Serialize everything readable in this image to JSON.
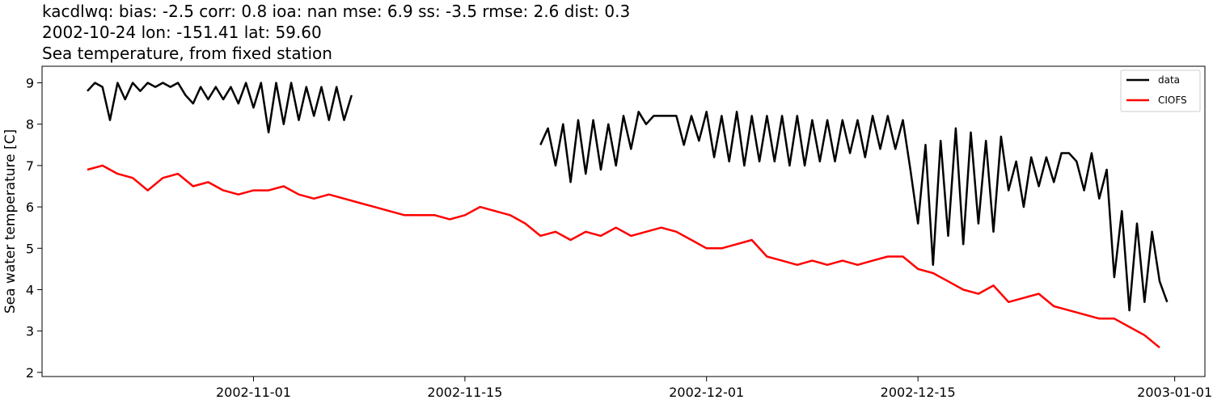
{
  "chart_data": {
    "type": "line",
    "title_lines": [
      "kacdlwq: bias: -2.5  corr: 0.8  ioa: nan  mse: 6.9  ss: -3.5  rmse: 2.6  dist: 0.3",
      "2002-10-24 lon: -151.41 lat: 59.60",
      "Sea temperature, from fixed station"
    ],
    "xlabel": "",
    "ylabel": "Sea water temperature [C]",
    "xlim": [
      "2002-10-18",
      "2003-01-03"
    ],
    "ylim": [
      1.9,
      9.4
    ],
    "x_ticks": [
      "2002-11-01",
      "2002-11-15",
      "2002-12-01",
      "2002-12-15",
      "2003-01-01"
    ],
    "y_ticks": [
      2,
      3,
      4,
      5,
      6,
      7,
      8,
      9
    ],
    "grid": false,
    "legend": "top-right",
    "series": [
      {
        "name": "data",
        "color": "#000000",
        "segments": [
          {
            "x": [
              "2002-10-21",
              "2002-10-21T12:00",
              "2002-10-22",
              "2002-10-22T12:00",
              "2002-10-23",
              "2002-10-23T12:00",
              "2002-10-24",
              "2002-10-24T12:00",
              "2002-10-25",
              "2002-10-25T12:00",
              "2002-10-26",
              "2002-10-26T12:00",
              "2002-10-27",
              "2002-10-27T12:00",
              "2002-10-28",
              "2002-10-28T12:00",
              "2002-10-29",
              "2002-10-29T12:00",
              "2002-10-30",
              "2002-10-30T12:00",
              "2002-10-31",
              "2002-10-31T12:00",
              "2002-11-01",
              "2002-11-01T12:00",
              "2002-11-02",
              "2002-11-02T12:00",
              "2002-11-03",
              "2002-11-03T12:00",
              "2002-11-04",
              "2002-11-04T12:00",
              "2002-11-05",
              "2002-11-05T12:00",
              "2002-11-06",
              "2002-11-06T12:00",
              "2002-11-07",
              "2002-11-07T12:00"
            ],
            "y": [
              8.8,
              9.0,
              8.9,
              8.1,
              9.0,
              8.6,
              9.0,
              8.8,
              9.0,
              8.9,
              9.0,
              8.9,
              9.0,
              8.7,
              8.5,
              8.9,
              8.6,
              8.9,
              8.6,
              8.9,
              8.5,
              9.0,
              8.4,
              9.0,
              7.8,
              9.0,
              8.0,
              9.0,
              8.1,
              8.9,
              8.2,
              8.9,
              8.1,
              8.9,
              8.1,
              8.7
            ]
          },
          {
            "x": [
              "2002-11-20",
              "2002-11-20T12:00",
              "2002-11-21",
              "2002-11-21T12:00",
              "2002-11-22",
              "2002-11-22T12:00",
              "2002-11-23",
              "2002-11-23T12:00",
              "2002-11-24",
              "2002-11-24T12:00",
              "2002-11-25",
              "2002-11-25T12:00",
              "2002-11-26",
              "2002-11-26T12:00",
              "2002-11-27",
              "2002-11-27T12:00",
              "2002-11-28",
              "2002-11-28T12:00",
              "2002-11-29",
              "2002-11-29T12:00",
              "2002-11-30",
              "2002-11-30T12:00",
              "2002-12-01",
              "2002-12-01T12:00",
              "2002-12-02",
              "2002-12-02T12:00",
              "2002-12-03",
              "2002-12-03T12:00",
              "2002-12-04",
              "2002-12-04T12:00",
              "2002-12-05",
              "2002-12-05T12:00",
              "2002-12-06",
              "2002-12-06T12:00",
              "2002-12-07",
              "2002-12-07T12:00",
              "2002-12-08",
              "2002-12-08T12:00",
              "2002-12-09",
              "2002-12-09T12:00",
              "2002-12-10",
              "2002-12-10T12:00",
              "2002-12-11",
              "2002-12-11T12:00",
              "2002-12-12",
              "2002-12-12T12:00",
              "2002-12-13",
              "2002-12-13T12:00",
              "2002-12-14",
              "2002-12-14T12:00",
              "2002-12-15",
              "2002-12-15T12:00",
              "2002-12-16",
              "2002-12-16T12:00",
              "2002-12-17",
              "2002-12-17T12:00",
              "2002-12-18",
              "2002-12-18T12:00",
              "2002-12-19",
              "2002-12-19T12:00",
              "2002-12-20",
              "2002-12-20T12:00",
              "2002-12-21",
              "2002-12-21T12:00",
              "2002-12-22",
              "2002-12-22T12:00",
              "2002-12-23",
              "2002-12-23T12:00",
              "2002-12-24",
              "2002-12-24T12:00",
              "2002-12-25",
              "2002-12-25T12:00",
              "2002-12-26",
              "2002-12-26T12:00",
              "2002-12-27",
              "2002-12-27T12:00",
              "2002-12-28",
              "2002-12-28T12:00",
              "2002-12-29",
              "2002-12-29T12:00",
              "2002-12-30",
              "2002-12-30T12:00",
              "2002-12-31",
              "2002-12-31T12:00"
            ],
            "y": [
              7.5,
              7.9,
              7.0,
              8.0,
              6.6,
              8.1,
              6.8,
              8.1,
              6.9,
              8.0,
              7.0,
              8.2,
              7.4,
              8.3,
              8.0,
              8.2,
              8.2,
              8.2,
              8.2,
              7.5,
              8.2,
              7.6,
              8.3,
              7.2,
              8.2,
              7.1,
              8.3,
              7.0,
              8.2,
              7.1,
              8.2,
              7.1,
              8.2,
              7.0,
              8.2,
              7.0,
              8.1,
              7.1,
              8.1,
              7.1,
              8.1,
              7.3,
              8.1,
              7.2,
              8.2,
              7.4,
              8.2,
              7.4,
              8.1,
              6.9,
              5.6,
              7.5,
              4.6,
              7.6,
              5.3,
              7.9,
              5.1,
              7.8,
              5.6,
              7.6,
              5.4,
              7.7,
              6.4,
              7.1,
              6.0,
              7.2,
              6.5,
              7.2,
              6.6,
              7.3,
              7.3,
              7.1,
              6.4,
              7.3,
              6.2,
              6.9,
              4.3,
              5.9,
              3.5,
              5.6,
              3.7,
              5.4,
              4.2,
              3.7
            ]
          }
        ]
      },
      {
        "name": "CIOFS",
        "color": "#ff0000",
        "segments": [
          {
            "x": [
              "2002-10-21",
              "2002-10-22",
              "2002-10-23",
              "2002-10-24",
              "2002-10-25",
              "2002-10-26",
              "2002-10-27",
              "2002-10-28",
              "2002-10-29",
              "2002-10-30",
              "2002-10-31",
              "2002-11-01",
              "2002-11-02",
              "2002-11-03",
              "2002-11-04",
              "2002-11-05",
              "2002-11-06",
              "2002-11-07",
              "2002-11-08",
              "2002-11-09",
              "2002-11-10",
              "2002-11-11",
              "2002-11-12",
              "2002-11-13",
              "2002-11-14",
              "2002-11-15",
              "2002-11-16",
              "2002-11-17",
              "2002-11-18",
              "2002-11-19",
              "2002-11-20",
              "2002-11-21",
              "2002-11-22",
              "2002-11-23",
              "2002-11-24",
              "2002-11-25",
              "2002-11-26",
              "2002-11-27",
              "2002-11-28",
              "2002-11-29",
              "2002-11-30",
              "2002-12-01",
              "2002-12-02",
              "2002-12-03",
              "2002-12-04",
              "2002-12-05",
              "2002-12-06",
              "2002-12-07",
              "2002-12-08",
              "2002-12-09",
              "2002-12-10",
              "2002-12-11",
              "2002-12-12",
              "2002-12-13",
              "2002-12-14",
              "2002-12-15",
              "2002-12-16",
              "2002-12-17",
              "2002-12-18",
              "2002-12-19",
              "2002-12-20",
              "2002-12-21",
              "2002-12-22",
              "2002-12-23",
              "2002-12-24",
              "2002-12-25",
              "2002-12-26",
              "2002-12-27",
              "2002-12-28",
              "2002-12-29",
              "2002-12-30",
              "2002-12-31"
            ],
            "y": [
              6.9,
              7.0,
              6.8,
              6.7,
              6.4,
              6.7,
              6.8,
              6.5,
              6.6,
              6.4,
              6.3,
              6.4,
              6.4,
              6.5,
              6.3,
              6.2,
              6.3,
              6.2,
              6.1,
              6.0,
              5.9,
              5.8,
              5.8,
              5.8,
              5.7,
              5.8,
              6.0,
              5.9,
              5.8,
              5.6,
              5.3,
              5.4,
              5.2,
              5.4,
              5.3,
              5.5,
              5.3,
              5.4,
              5.5,
              5.4,
              5.2,
              5.0,
              5.0,
              5.1,
              5.2,
              4.8,
              4.7,
              4.6,
              4.7,
              4.6,
              4.7,
              4.6,
              4.7,
              4.8,
              4.8,
              4.5,
              4.4,
              4.2,
              4.0,
              3.9,
              4.1,
              3.7,
              3.8,
              3.9,
              3.6,
              3.5,
              3.4,
              3.3,
              3.3,
              3.1,
              2.9,
              2.6
            ]
          }
        ]
      }
    ]
  }
}
